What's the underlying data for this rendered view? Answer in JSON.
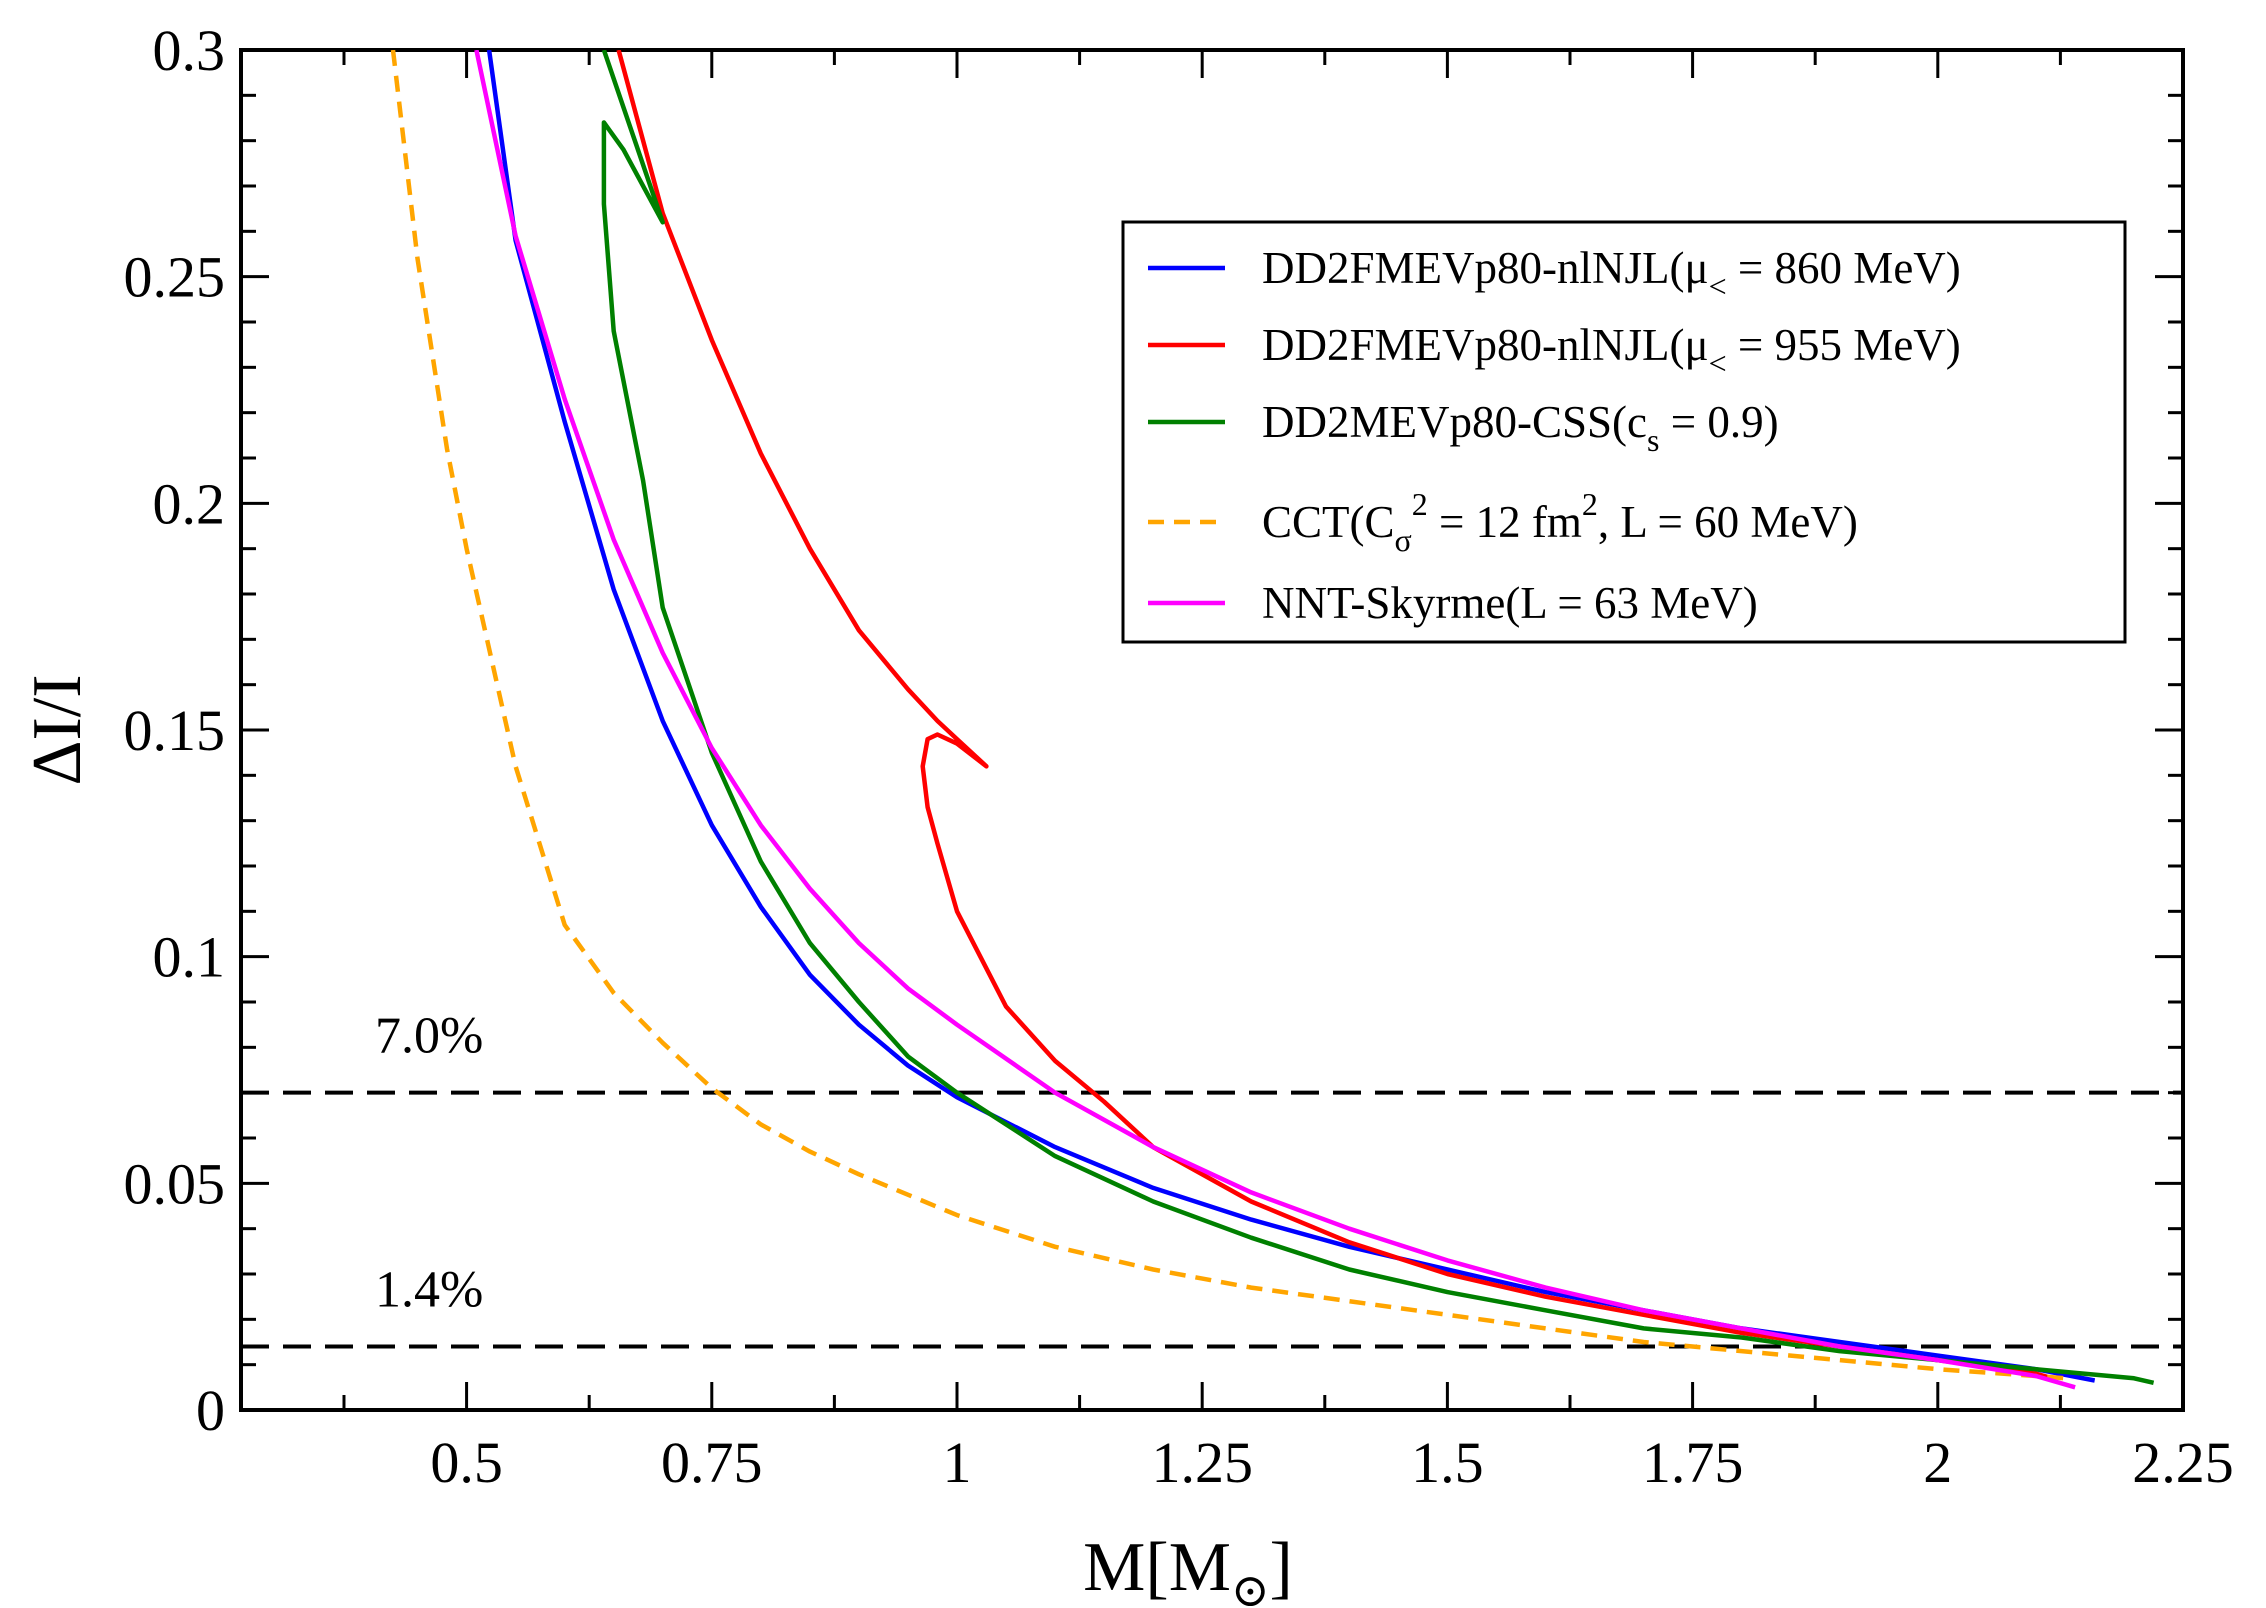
{
  "chart_data": {
    "type": "line",
    "title": "",
    "xlabel": "M[M",
    "xlabel_sub": "⊙",
    "xlabel_suffix": "]",
    "ylabel": "ΔI/I",
    "xlim": [
      0.27,
      2.25
    ],
    "ylim": [
      0,
      0.3
    ],
    "x_ticks": [
      0.5,
      0.75,
      1,
      1.25,
      1.5,
      1.75,
      2,
      2.25
    ],
    "x_tick_labels": [
      "0.5",
      "0.75",
      "1",
      "1.25",
      "1.5",
      "1.75",
      "2",
      "2.25"
    ],
    "y_ticks": [
      0,
      0.05,
      0.1,
      0.15,
      0.2,
      0.25,
      0.3
    ],
    "y_tick_labels": [
      "0",
      "0.05",
      "0.1",
      "0.15",
      "0.2",
      "0.25",
      "0.3"
    ],
    "grid": false,
    "legend_position": "top-right",
    "hlines": [
      {
        "y": 0.07,
        "label": "7.0%",
        "style": "dashed",
        "color": "#000000"
      },
      {
        "y": 0.014,
        "label": "1.4%",
        "style": "dashed",
        "color": "#000000"
      }
    ],
    "series": [
      {
        "name": "DD2FMEVp80-nlNJL(μ< = 860 MeV)",
        "legend_main": "DD2FMEVp80-nlNJL(μ",
        "legend_sub": "<",
        "legend_tail": " = 860 MeV)",
        "color": "#0000ff",
        "dash": "solid",
        "x": [
          0.523,
          0.55,
          0.6,
          0.65,
          0.7,
          0.75,
          0.8,
          0.85,
          0.9,
          0.95,
          1.0,
          1.1,
          1.2,
          1.3,
          1.4,
          1.5,
          1.6,
          1.7,
          1.8,
          1.9,
          2.0,
          2.1,
          2.16
        ],
        "y": [
          0.3,
          0.258,
          0.218,
          0.181,
          0.152,
          0.129,
          0.111,
          0.096,
          0.085,
          0.076,
          0.069,
          0.058,
          0.049,
          0.042,
          0.036,
          0.031,
          0.026,
          0.022,
          0.018,
          0.015,
          0.012,
          0.009,
          0.0065
        ]
      },
      {
        "name": "DD2FMEVp80-nlNJL(μ< = 955 MeV)",
        "legend_main": "DD2FMEVp80-nlNJL(μ",
        "legend_sub": "<",
        "legend_tail": " = 955 MeV)",
        "color": "#ff0000",
        "dash": "solid",
        "x": [
          0.655,
          0.7,
          0.75,
          0.8,
          0.85,
          0.9,
          0.95,
          0.98,
          1.0,
          1.03,
          1.0,
          0.98,
          0.97,
          0.965,
          0.97,
          0.98,
          1.0,
          1.05,
          1.1,
          1.15,
          1.2,
          1.3,
          1.4,
          1.5,
          1.6,
          1.7,
          1.8,
          1.9,
          2.0,
          2.1,
          2.12
        ],
        "y": [
          0.3,
          0.264,
          0.236,
          0.211,
          0.19,
          0.172,
          0.159,
          0.152,
          0.148,
          0.142,
          0.147,
          0.149,
          0.148,
          0.142,
          0.133,
          0.125,
          0.11,
          0.089,
          0.077,
          0.068,
          0.058,
          0.046,
          0.037,
          0.03,
          0.025,
          0.021,
          0.017,
          0.014,
          0.011,
          0.008,
          0.0068
        ]
      },
      {
        "name": "DD2MEVp80-CSS(cs = 0.9)",
        "legend_main": "DD2MEVp80-CSS(c",
        "legend_sub": "s",
        "legend_tail": " = 0.9)",
        "color": "#008000",
        "dash": "solid",
        "x": [
          0.64,
          0.7,
          0.66,
          0.64,
          0.64,
          0.65,
          0.68,
          0.7,
          0.75,
          0.8,
          0.85,
          0.9,
          0.95,
          1.0,
          1.1,
          1.2,
          1.3,
          1.4,
          1.5,
          1.6,
          1.7,
          1.8,
          1.9,
          2.0,
          2.1,
          2.2,
          2.22
        ],
        "y": [
          0.3,
          0.262,
          0.278,
          0.284,
          0.266,
          0.238,
          0.205,
          0.177,
          0.145,
          0.121,
          0.103,
          0.09,
          0.078,
          0.07,
          0.056,
          0.046,
          0.038,
          0.031,
          0.026,
          0.022,
          0.018,
          0.016,
          0.013,
          0.011,
          0.009,
          0.007,
          0.006
        ]
      },
      {
        "name": "CCT(Cσ2 = 12 fm2, L = 60 MeV)",
        "legend_main": "CCT(C",
        "legend_sub": "σ",
        "legend_sup": "2",
        "legend_mid": " = 12 fm",
        "legend_sup2": "2",
        "legend_tail": ", L = 60 MeV)",
        "color": "#ffa500",
        "dash": "dashed",
        "x": [
          0.425,
          0.45,
          0.48,
          0.5,
          0.55,
          0.6,
          0.65,
          0.7,
          0.75,
          0.8,
          0.85,
          0.9,
          1.0,
          1.1,
          1.2,
          1.3,
          1.4,
          1.5,
          1.6,
          1.7,
          1.8,
          1.9,
          2.0,
          2.1,
          2.13
        ],
        "y": [
          0.3,
          0.254,
          0.212,
          0.19,
          0.142,
          0.107,
          0.092,
          0.081,
          0.071,
          0.063,
          0.057,
          0.052,
          0.043,
          0.036,
          0.031,
          0.027,
          0.024,
          0.021,
          0.018,
          0.015,
          0.013,
          0.011,
          0.009,
          0.0075,
          0.007
        ]
      },
      {
        "name": "NNT-Skyrme(L = 63 MeV)",
        "legend_main": "NNT-Skyrme(L = 63 MeV)",
        "legend_sub": "",
        "legend_tail": "",
        "color": "#ff00ff",
        "dash": "solid",
        "x": [
          0.51,
          0.55,
          0.6,
          0.65,
          0.7,
          0.75,
          0.8,
          0.85,
          0.9,
          0.95,
          1.0,
          1.1,
          1.2,
          1.3,
          1.4,
          1.5,
          1.6,
          1.7,
          1.8,
          1.9,
          2.0,
          2.1,
          2.14
        ],
        "y": [
          0.3,
          0.259,
          0.223,
          0.192,
          0.167,
          0.146,
          0.129,
          0.115,
          0.103,
          0.093,
          0.085,
          0.07,
          0.058,
          0.048,
          0.04,
          0.033,
          0.027,
          0.022,
          0.018,
          0.014,
          0.011,
          0.0075,
          0.005
        ]
      }
    ]
  }
}
